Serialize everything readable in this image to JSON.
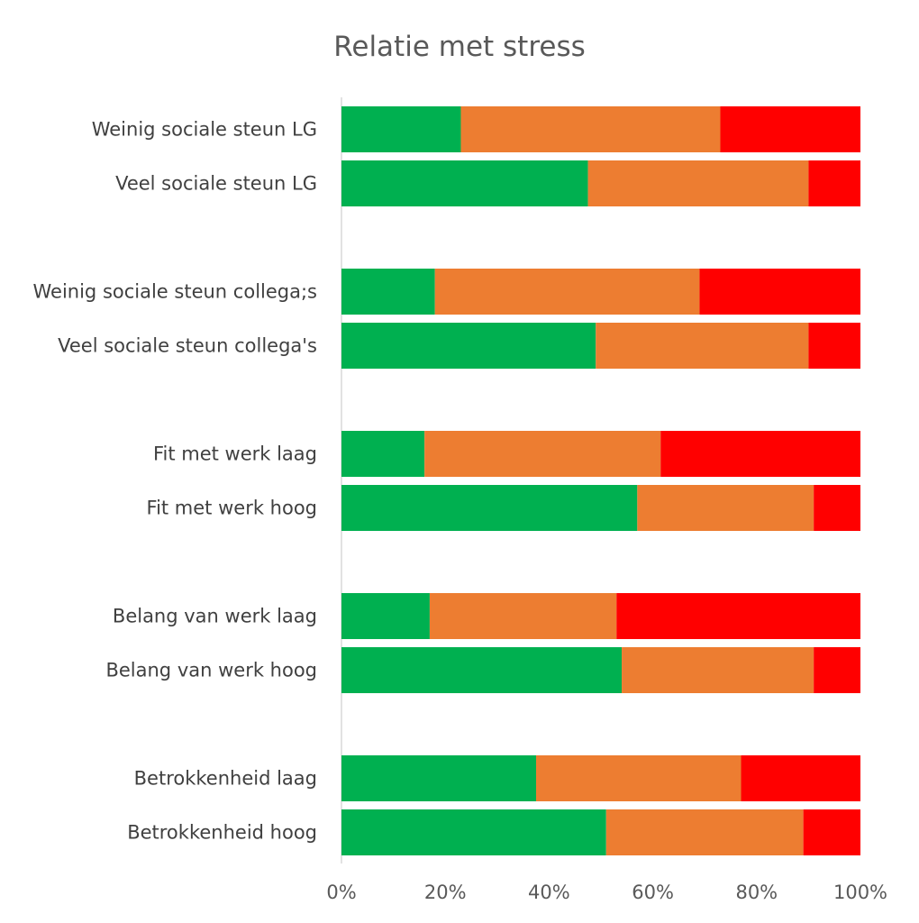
{
  "chart_data": {
    "type": "bar",
    "orientation": "horizontal",
    "stacking": "percent",
    "title": "Relatie met stress",
    "xlabel": "",
    "ylabel": "",
    "xlim": [
      0,
      1
    ],
    "x_ticks": [
      "0%",
      "20%",
      "40%",
      "60%",
      "80%",
      "100%"
    ],
    "grid": false,
    "legend": "none",
    "categories": [
      "Weinig sociale steun LG",
      "Veel sociale steun LG",
      "Weinig sociale steun collega;s",
      "Veel sociale steun collega's",
      "Fit met werk laag",
      "Fit met werk hoog",
      "Belang van werk laag",
      "Belang van werk hoog",
      "Betrokkenheid laag",
      "Betrokkenheid hoog"
    ],
    "series": [
      {
        "color": "#00b050",
        "values": [
          0.23,
          0.475,
          0.18,
          0.49,
          0.16,
          0.57,
          0.17,
          0.54,
          0.375,
          0.51
        ]
      },
      {
        "color": "#ed7d31",
        "values": [
          0.5,
          0.425,
          0.51,
          0.41,
          0.455,
          0.34,
          0.36,
          0.37,
          0.395,
          0.38
        ]
      },
      {
        "color": "#ff0000",
        "values": [
          0.27,
          0.1,
          0.31,
          0.1,
          0.385,
          0.09,
          0.47,
          0.09,
          0.23,
          0.11
        ]
      }
    ]
  }
}
